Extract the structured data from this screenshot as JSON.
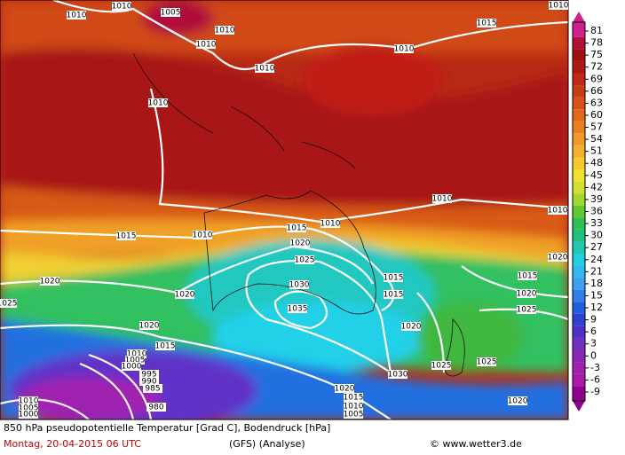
{
  "map": {
    "isobar_labels": [
      "1010",
      "1010",
      "1005",
      "1010",
      "1010",
      "1010",
      "1010",
      "1015",
      "1010",
      "1010",
      "1010",
      "1010",
      "1010",
      "1015",
      "1015",
      "1020",
      "1025",
      "1020",
      "1020",
      "1030",
      "1035",
      "1015",
      "1015",
      "1015",
      "1020",
      "1025",
      "1020",
      "1025",
      "1020",
      "1015",
      "1010",
      "1005",
      "1000",
      "995",
      "990",
      "985",
      "1030",
      "1025",
      "1025",
      "1020",
      "1015",
      "1010",
      "1005",
      "1020",
      "980",
      "1010",
      "1005",
      "1000",
      "1010",
      "1020"
    ],
    "colorbar": {
      "ticks": [
        81,
        78,
        75,
        72,
        69,
        66,
        63,
        60,
        57,
        54,
        51,
        48,
        45,
        42,
        39,
        36,
        33,
        30,
        27,
        24,
        21,
        18,
        15,
        12,
        9,
        6,
        3,
        0,
        -3,
        -6,
        -9
      ],
      "colors": [
        "#d02090",
        "#b0103a",
        "#a01010",
        "#b01818",
        "#c02818",
        "#c83c18",
        "#d85018",
        "#e06818",
        "#e88020",
        "#f09828",
        "#f0b030",
        "#f8c830",
        "#f0e030",
        "#d0e030",
        "#a0d830",
        "#60c830",
        "#30c050",
        "#20c080",
        "#20c8b0",
        "#20d0e0",
        "#30b8f0",
        "#40a0f0",
        "#3080e8",
        "#2060e0",
        "#3040d0",
        "#5030c8",
        "#7030c0",
        "#8828b8",
        "#a020b0",
        "#b018a8",
        "#900090"
      ]
    },
    "footer": {
      "title": "850 hPa pseudopotentielle Temperatur [Grad C], Bodendruck [hPa]",
      "date": "Montag, 20-04-2015  06 UTC",
      "model": "(GFS)  (Analyse)",
      "source": "© www.wetter3.de"
    }
  }
}
